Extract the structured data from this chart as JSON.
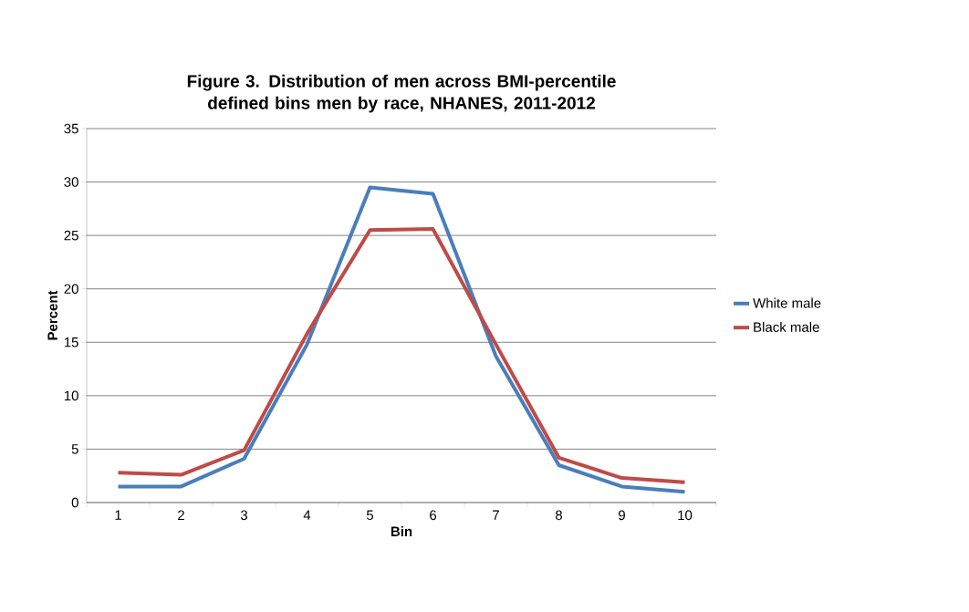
{
  "chart_data": {
    "type": "line",
    "title": "Figure 3. Distribution of men across BMI-percentile defined bins men by race, NHANES, 2011-2012",
    "xlabel": "Bin",
    "ylabel": "Percent",
    "categories": [
      "1",
      "2",
      "3",
      "4",
      "5",
      "6",
      "7",
      "8",
      "9",
      "10"
    ],
    "series": [
      {
        "name": "White male",
        "color": "#4a7ebb",
        "values": [
          1.5,
          1.5,
          4.1,
          14.8,
          29.5,
          28.9,
          13.7,
          3.5,
          1.5,
          1.0
        ]
      },
      {
        "name": "Black male",
        "color": "#be4b48",
        "values": [
          2.8,
          2.6,
          4.9,
          15.8,
          25.5,
          25.6,
          14.8,
          4.2,
          2.3,
          1.9
        ]
      }
    ],
    "ylim": [
      0,
      35
    ],
    "yticks": [
      0,
      5,
      10,
      15,
      20,
      25,
      30,
      35
    ],
    "grid": "y",
    "legend": "right",
    "marker": "none",
    "line_style": "solid"
  }
}
